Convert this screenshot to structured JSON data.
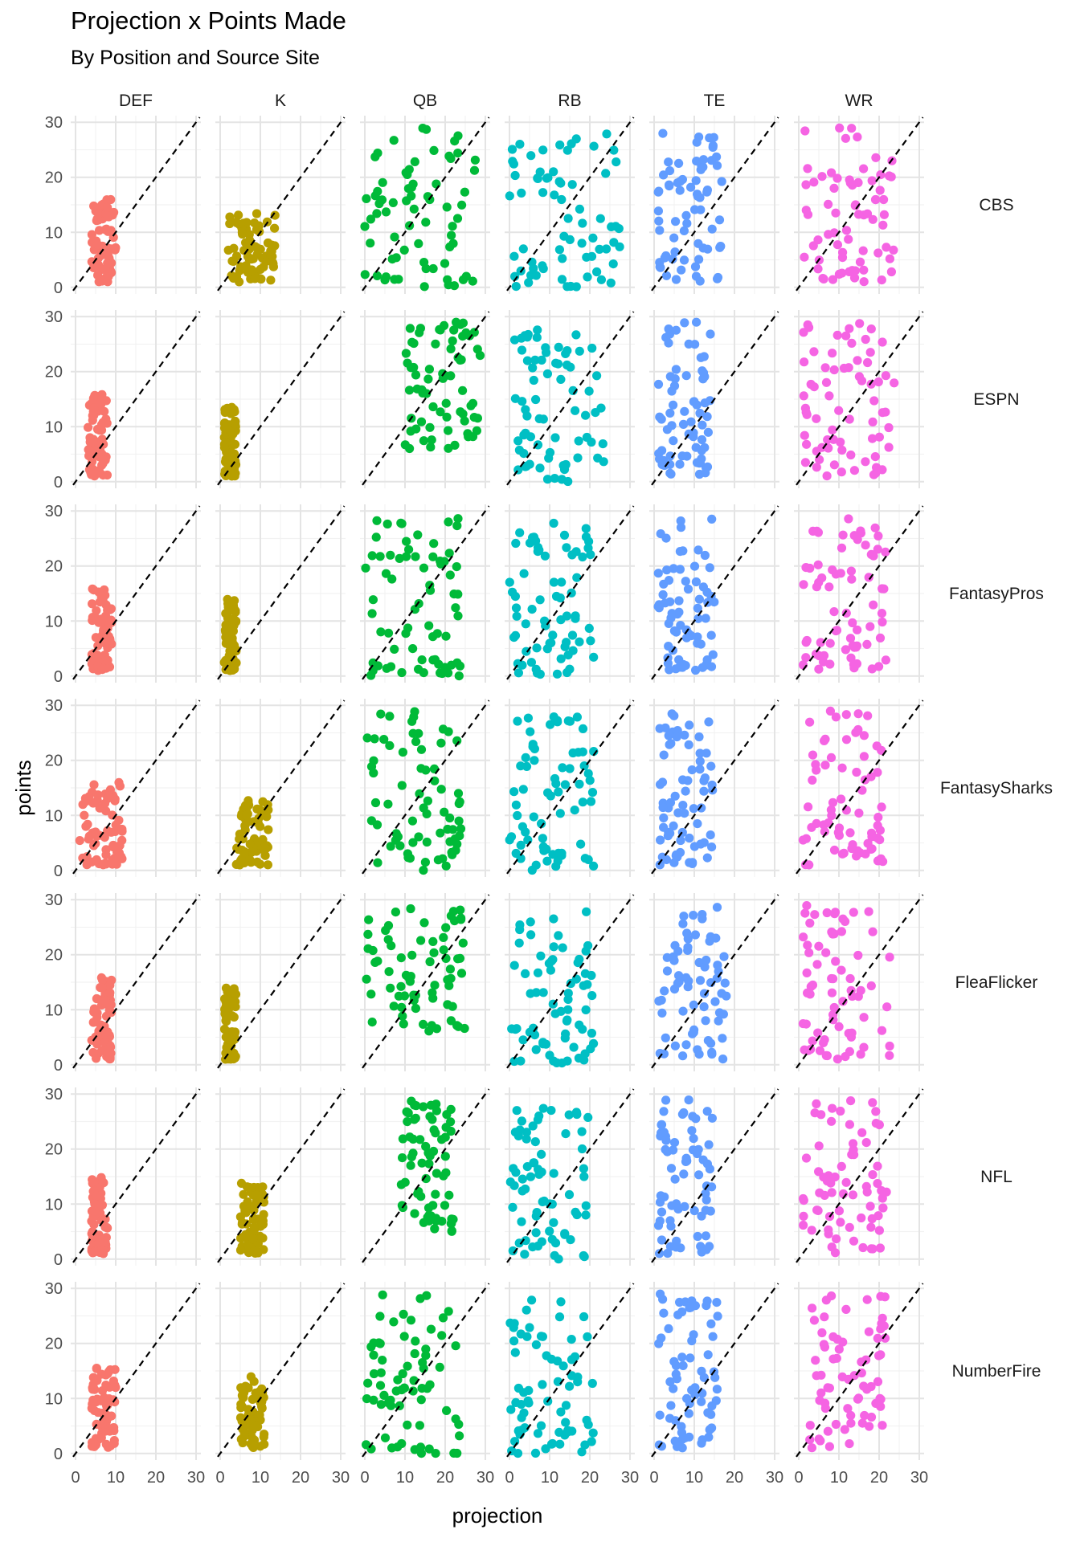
{
  "chart_data": {
    "type": "scatter",
    "title": "Projection x Points Made",
    "subtitle": "By Position and Source Site",
    "xlabel": "projection",
    "ylabel": "points",
    "xlim": [
      0,
      30
    ],
    "ylim": [
      0,
      30
    ],
    "x_ticks": [
      0,
      10,
      20,
      30
    ],
    "y_ticks": [
      0,
      10,
      20,
      30
    ],
    "grid": true,
    "legend": "none",
    "reference_line": "y = x (dashed)",
    "facet_columns": [
      "DEF",
      "K",
      "QB",
      "RB",
      "TE",
      "WR"
    ],
    "facet_rows": [
      "CBS",
      "ESPN",
      "FantasyPros",
      "FantasySharks",
      "FleaFlicker",
      "NFL",
      "NumberFire"
    ],
    "colors": {
      "DEF": "#F8766D",
      "K": "#B79F00",
      "QB": "#00BA38",
      "RB": "#00BFC4",
      "TE": "#619CFF",
      "WR": "#F564E3"
    },
    "series": [
      {
        "position": "DEF",
        "source": "CBS",
        "x_range": [
          4,
          10
        ],
        "y_range": [
          1,
          16
        ]
      },
      {
        "position": "DEF",
        "source": "ESPN",
        "x_range": [
          3,
          8
        ],
        "y_range": [
          1,
          16
        ]
      },
      {
        "position": "DEF",
        "source": "FantasyPros",
        "x_range": [
          4,
          9
        ],
        "y_range": [
          1,
          16
        ]
      },
      {
        "position": "DEF",
        "source": "FantasySharks",
        "x_range": [
          1,
          12
        ],
        "y_range": [
          1,
          16
        ]
      },
      {
        "position": "DEF",
        "source": "FleaFlicker",
        "x_range": [
          4,
          9
        ],
        "y_range": [
          1,
          16
        ]
      },
      {
        "position": "DEF",
        "source": "NFL",
        "x_range": [
          4,
          8
        ],
        "y_range": [
          1,
          16
        ]
      },
      {
        "position": "DEF",
        "source": "NumberFire",
        "x_range": [
          4,
          10
        ],
        "y_range": [
          1,
          16
        ]
      },
      {
        "position": "K",
        "source": "CBS",
        "x_range": [
          2,
          14
        ],
        "y_range": [
          1,
          14
        ]
      },
      {
        "position": "K",
        "source": "ESPN",
        "x_range": [
          1,
          4
        ],
        "y_range": [
          1,
          14
        ]
      },
      {
        "position": "K",
        "source": "FantasyPros",
        "x_range": [
          1,
          4
        ],
        "y_range": [
          1,
          14
        ]
      },
      {
        "position": "K",
        "source": "FantasySharks",
        "x_range": [
          4,
          12
        ],
        "y_range": [
          1,
          14
        ]
      },
      {
        "position": "K",
        "source": "FleaFlicker",
        "x_range": [
          1,
          4
        ],
        "y_range": [
          1,
          14
        ]
      },
      {
        "position": "K",
        "source": "NFL",
        "x_range": [
          5,
          11
        ],
        "y_range": [
          1,
          14
        ]
      },
      {
        "position": "K",
        "source": "NumberFire",
        "x_range": [
          5,
          11
        ],
        "y_range": [
          1,
          14
        ]
      },
      {
        "position": "QB",
        "source": "CBS",
        "x_range": [
          0,
          28
        ],
        "y_range": [
          0,
          29
        ]
      },
      {
        "position": "QB",
        "source": "ESPN",
        "x_range": [
          10,
          29
        ],
        "y_range": [
          6,
          29
        ]
      },
      {
        "position": "QB",
        "source": "FantasyPros",
        "x_range": [
          0,
          24
        ],
        "y_range": [
          0,
          29
        ]
      },
      {
        "position": "QB",
        "source": "FantasySharks",
        "x_range": [
          0,
          24
        ],
        "y_range": [
          0,
          29
        ]
      },
      {
        "position": "QB",
        "source": "FleaFlicker",
        "x_range": [
          0,
          25
        ],
        "y_range": [
          6,
          29
        ]
      },
      {
        "position": "QB",
        "source": "NFL",
        "x_range": [
          9,
          22
        ],
        "y_range": [
          5,
          29
        ]
      },
      {
        "position": "QB",
        "source": "NumberFire",
        "x_range": [
          0,
          24
        ],
        "y_range": [
          0,
          29
        ]
      },
      {
        "position": "RB",
        "source": "CBS",
        "x_range": [
          0,
          28
        ],
        "y_range": [
          0,
          28
        ]
      },
      {
        "position": "RB",
        "source": "ESPN",
        "x_range": [
          0,
          24
        ],
        "y_range": [
          0,
          28
        ]
      },
      {
        "position": "RB",
        "source": "FantasyPros",
        "x_range": [
          0,
          21
        ],
        "y_range": [
          0,
          28
        ]
      },
      {
        "position": "RB",
        "source": "FantasySharks",
        "x_range": [
          0,
          21
        ],
        "y_range": [
          0,
          28
        ]
      },
      {
        "position": "RB",
        "source": "FleaFlicker",
        "x_range": [
          0,
          21
        ],
        "y_range": [
          0,
          28
        ]
      },
      {
        "position": "RB",
        "source": "NFL",
        "x_range": [
          0,
          20
        ],
        "y_range": [
          0,
          28
        ]
      },
      {
        "position": "RB",
        "source": "NumberFire",
        "x_range": [
          0,
          21
        ],
        "y_range": [
          0,
          28
        ]
      },
      {
        "position": "TE",
        "source": "CBS",
        "x_range": [
          1,
          17
        ],
        "y_range": [
          1,
          29
        ]
      },
      {
        "position": "TE",
        "source": "ESPN",
        "x_range": [
          1,
          14
        ],
        "y_range": [
          1,
          29
        ]
      },
      {
        "position": "TE",
        "source": "FantasyPros",
        "x_range": [
          1,
          15
        ],
        "y_range": [
          1,
          29
        ]
      },
      {
        "position": "TE",
        "source": "FantasySharks",
        "x_range": [
          1,
          15
        ],
        "y_range": [
          1,
          29
        ]
      },
      {
        "position": "TE",
        "source": "FleaFlicker",
        "x_range": [
          1,
          18
        ],
        "y_range": [
          1,
          29
        ]
      },
      {
        "position": "TE",
        "source": "NFL",
        "x_range": [
          1,
          15
        ],
        "y_range": [
          1,
          29
        ]
      },
      {
        "position": "TE",
        "source": "NumberFire",
        "x_range": [
          1,
          16
        ],
        "y_range": [
          1,
          29
        ]
      },
      {
        "position": "WR",
        "source": "CBS",
        "x_range": [
          1,
          24
        ],
        "y_range": [
          1,
          29
        ]
      },
      {
        "position": "WR",
        "source": "ESPN",
        "x_range": [
          1,
          24
        ],
        "y_range": [
          1,
          29
        ]
      },
      {
        "position": "WR",
        "source": "FantasyPros",
        "x_range": [
          1,
          22
        ],
        "y_range": [
          1,
          29
        ]
      },
      {
        "position": "WR",
        "source": "FantasySharks",
        "x_range": [
          1,
          21
        ],
        "y_range": [
          1,
          29
        ]
      },
      {
        "position": "WR",
        "source": "FleaFlicker",
        "x_range": [
          1,
          23
        ],
        "y_range": [
          1,
          29
        ]
      },
      {
        "position": "WR",
        "source": "NFL",
        "x_range": [
          1,
          22
        ],
        "y_range": [
          1,
          29
        ]
      },
      {
        "position": "WR",
        "source": "NumberFire",
        "x_range": [
          1,
          22
        ],
        "y_range": [
          1,
          29
        ]
      }
    ]
  }
}
